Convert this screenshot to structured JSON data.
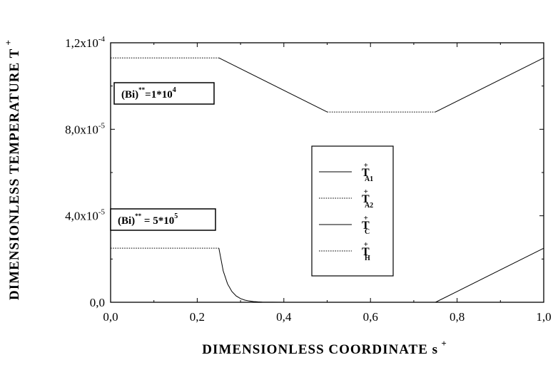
{
  "chart_data": {
    "type": "line",
    "xlabel": "DIMENSIONLESS  COORDINATE",
    "xlabel_symbol": "s",
    "xlabel_sup": "+",
    "ylabel": "DIMENSIONLESS   TEMPERATURE",
    "ylabel_symbol": "T",
    "ylabel_sup": "+",
    "xlim": [
      0.0,
      1.0
    ],
    "ylim": [
      0.0,
      0.00012
    ],
    "x_ticks": [
      {
        "value": 0.0,
        "label": "0,0"
      },
      {
        "value": 0.2,
        "label": "0,2"
      },
      {
        "value": 0.4,
        "label": "0,4"
      },
      {
        "value": 0.6,
        "label": "0,6"
      },
      {
        "value": 0.8,
        "label": "0,8"
      },
      {
        "value": 1.0,
        "label": "1,0"
      }
    ],
    "y_ticks": [
      {
        "value": 0.0,
        "mantissa": "0,0",
        "exp": ""
      },
      {
        "value": 4e-05,
        "mantissa": "4,0x10",
        "exp": "-5"
      },
      {
        "value": 8e-05,
        "mantissa": "8,0x10",
        "exp": "-5"
      },
      {
        "value": 0.00012,
        "mantissa": "1,2x10",
        "exp": "-4"
      }
    ],
    "grid": false,
    "legend_position": "center-right",
    "legend": [
      {
        "base": "T",
        "sup": "+",
        "sub": "A1",
        "style": "solid"
      },
      {
        "base": "T",
        "sup": "+",
        "sub": "A2",
        "style": "dotted"
      },
      {
        "base": "T",
        "sup": "+",
        "sub": "C",
        "style": "solid"
      },
      {
        "base": "T",
        "sup": "+",
        "sub": "H",
        "style": "dotted"
      }
    ],
    "annotations": [
      {
        "pre": "(Bi)",
        "sup1": "**",
        "mid": "=1*10",
        "sup2": "4"
      },
      {
        "pre": "(Bi)",
        "sup1": "**",
        "mid": " = 5*10",
        "sup2": "5"
      }
    ],
    "series": [
      {
        "x": [
          0.0,
          0.25
        ],
        "y": [
          0.000113,
          0.000113
        ],
        "style": "dotted"
      },
      {
        "x": [
          0.25,
          0.5
        ],
        "y": [
          0.000113,
          8.8e-05
        ],
        "style": "solid"
      },
      {
        "x": [
          0.5,
          0.75
        ],
        "y": [
          8.8e-05,
          8.8e-05
        ],
        "style": "dotted"
      },
      {
        "x": [
          0.75,
          1.0
        ],
        "y": [
          8.8e-05,
          0.000113
        ],
        "style": "solid"
      },
      {
        "x": [
          0.0,
          0.25
        ],
        "y": [
          2.5e-05,
          2.5e-05
        ],
        "style": "dotted"
      },
      {
        "x": [
          0.25,
          0.26,
          0.27,
          0.28,
          0.29,
          0.3,
          0.31,
          0.32,
          0.33,
          0.34,
          0.35,
          0.37,
          0.4,
          0.5
        ],
        "y": [
          2.5e-05,
          1.45e-05,
          8.5e-06,
          5e-06,
          2.9e-06,
          1.7e-06,
          1e-06,
          6e-07,
          3.5e-07,
          2e-07,
          1e-07,
          4e-08,
          0.0,
          0.0
        ],
        "style": "solid"
      },
      {
        "x": [
          0.5,
          0.75
        ],
        "y": [
          0.0,
          0.0
        ],
        "style": "dotted"
      },
      {
        "x": [
          0.75,
          1.0
        ],
        "y": [
          0.0,
          2.5e-05
        ],
        "style": "solid"
      }
    ]
  }
}
